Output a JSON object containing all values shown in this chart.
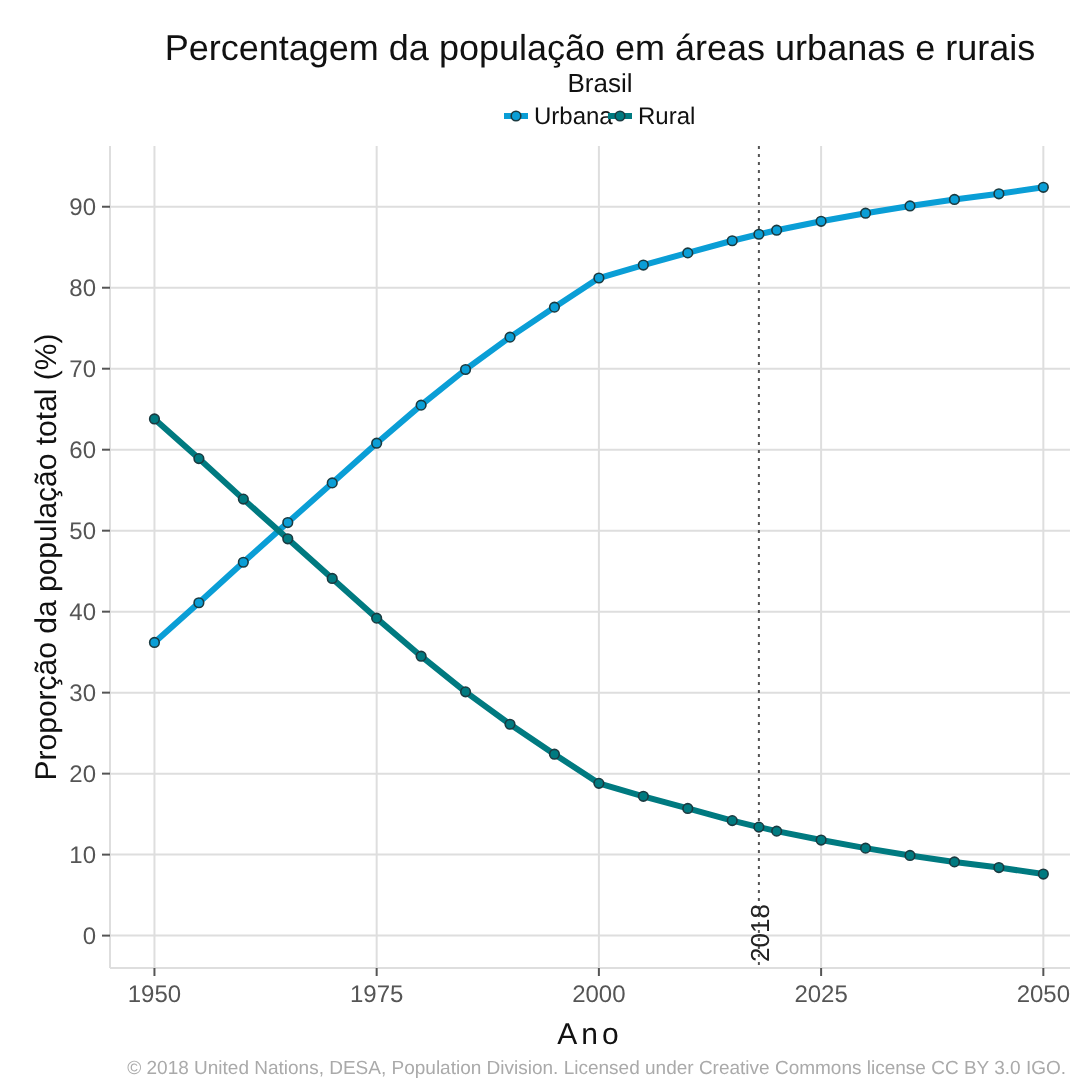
{
  "chart_data": {
    "type": "line",
    "title": "Percentagem da população em áreas urbanas e rurais",
    "subtitle": "Brasil",
    "xlabel": "Ano",
    "ylabel": "Proporção da população total (%)",
    "x": [
      1950,
      1955,
      1960,
      1965,
      1970,
      1975,
      1980,
      1985,
      1990,
      1995,
      2000,
      2005,
      2010,
      2015,
      2018,
      2020,
      2025,
      2030,
      2035,
      2040,
      2045,
      2050
    ],
    "series": [
      {
        "name": "Urbana",
        "color": "#0a9ed6",
        "values": [
          36.2,
          41.1,
          46.1,
          51.0,
          55.9,
          60.8,
          65.5,
          69.9,
          73.9,
          77.6,
          81.2,
          82.8,
          84.3,
          85.8,
          86.6,
          87.1,
          88.2,
          89.2,
          90.1,
          90.9,
          91.6,
          92.4
        ]
      },
      {
        "name": "Rural",
        "color": "#007a80",
        "values": [
          63.8,
          58.9,
          53.9,
          49.0,
          44.1,
          39.2,
          34.5,
          30.1,
          26.1,
          22.4,
          18.8,
          17.2,
          15.7,
          14.2,
          13.4,
          12.9,
          11.8,
          10.8,
          9.9,
          9.1,
          8.4,
          7.6
        ]
      }
    ],
    "xlim": [
      1945,
      2053
    ],
    "xticks": [
      1950,
      1975,
      2000,
      2025,
      2050
    ],
    "ylim": [
      -4,
      97.5
    ],
    "yticks": [
      0,
      10,
      20,
      30,
      40,
      50,
      60,
      70,
      80,
      90
    ],
    "ref_lines": [
      {
        "axis": "x",
        "value": 2018,
        "label": "2018",
        "color": "#555555",
        "line_style": "dotted"
      }
    ],
    "grid": true,
    "legend": "top",
    "marker": "circle",
    "line_style": "solid",
    "annotations": [
      "© 2018 United Nations, DESA, Population Division. Licensed under Creative Commons license CC BY 3.0 IGO."
    ]
  }
}
